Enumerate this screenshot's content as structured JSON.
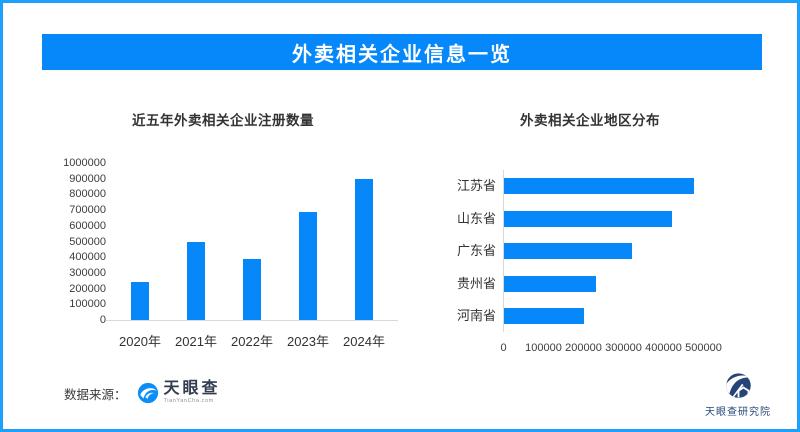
{
  "page": {
    "title": "外卖相关企业信息一览"
  },
  "colors": {
    "accent": "#0688fa",
    "frame": "#1e9ffd",
    "axis_line": "#d9d9d9",
    "text": "#333333",
    "navy": "#254579",
    "wordmark": "#323c50",
    "subgray": "#8b9198"
  },
  "chart_data": [
    {
      "type": "bar",
      "orientation": "vertical",
      "title": "近五年外卖相关企业注册数量",
      "categories": [
        "2020年",
        "2021年",
        "2022年",
        "2023年",
        "2024年"
      ],
      "values": [
        245000,
        495000,
        390000,
        690000,
        900000
      ],
      "ylim": [
        0,
        1000000
      ],
      "ytick_step": 100000,
      "grid": false,
      "legend": "none",
      "bar_color": "#0688fa"
    },
    {
      "type": "bar",
      "orientation": "horizontal",
      "title": "外卖相关企业地区分布",
      "categories": [
        "江苏省",
        "山东省",
        "广东省",
        "贵州省",
        "河南省"
      ],
      "values": [
        475000,
        420000,
        320000,
        230000,
        200000
      ],
      "xlim": [
        0,
        500000
      ],
      "xtick_step": 100000,
      "grid": false,
      "legend": "none",
      "bar_color": "#0688fa"
    }
  ],
  "footer": {
    "source_label": "数据来源：",
    "brand": {
      "name": "天眼查",
      "domain": "TianYanCha.com",
      "icon": "tianyancha-eye-icon"
    },
    "institute": {
      "name": "天眼查研究院",
      "icon": "tianyancha-institute-icon"
    }
  }
}
